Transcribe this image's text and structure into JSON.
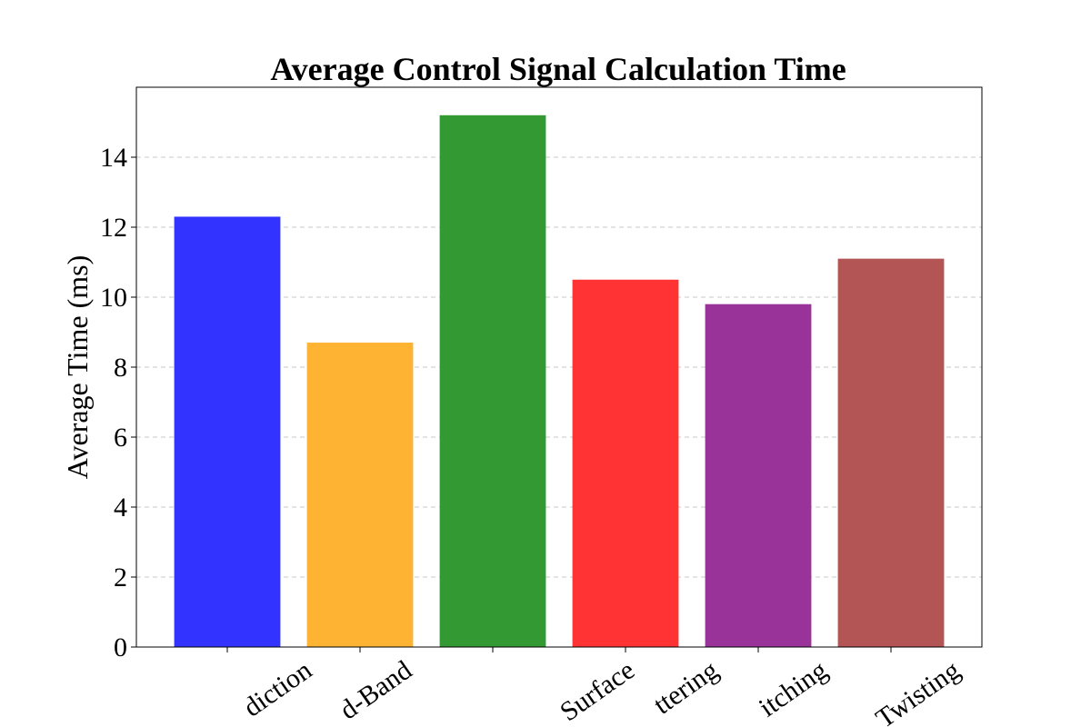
{
  "chart_data": {
    "type": "bar",
    "title": "Average Control Signal Calculation Time",
    "ylabel": "Average Time (ms)",
    "categories": [
      "diction",
      "d-Band",
      null,
      "Surface",
      "ttering",
      "itching",
      "Twisting"
    ],
    "values": [
      12.3,
      8.7,
      15.2,
      10.5,
      9.8,
      11.1,
      null
    ],
    "colors": [
      "#3333ff",
      "#ffb333",
      "#339933",
      "#ff3333",
      "#993399",
      "#b35555"
    ],
    "ylim": [
      0,
      16
    ],
    "yticks": [
      0,
      2,
      4,
      6,
      8,
      10,
      12,
      14
    ],
    "grid": true
  }
}
